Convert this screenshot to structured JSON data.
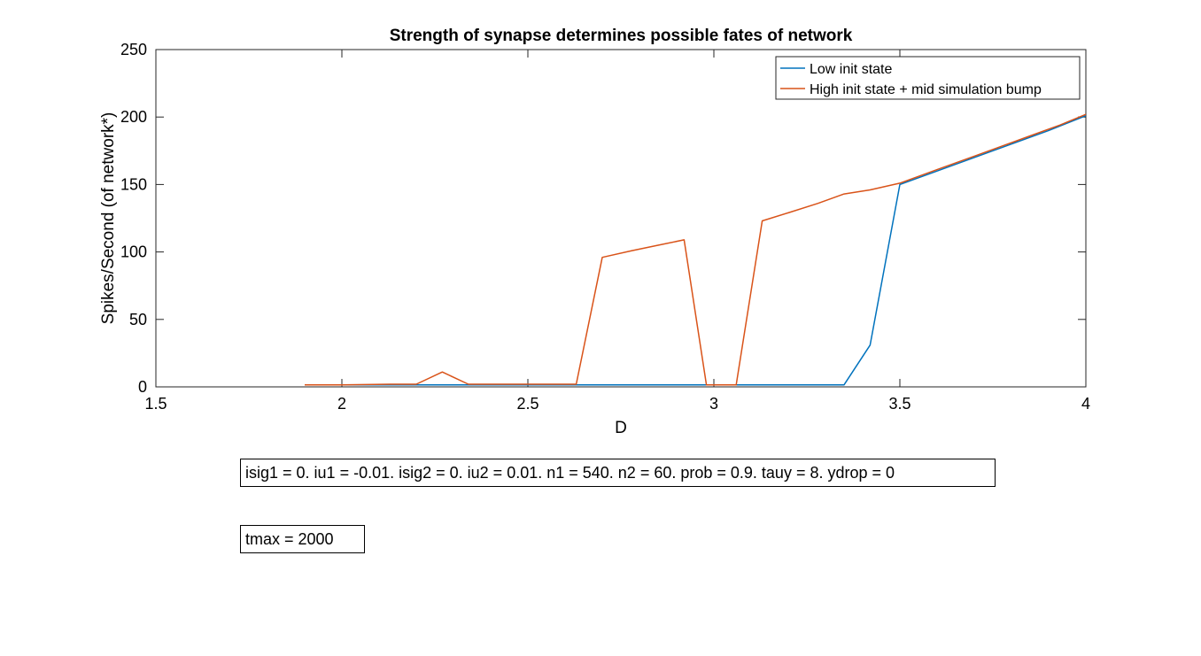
{
  "chart_data": {
    "type": "line",
    "title": "Strength of synapse determines possible fates of network",
    "xlabel": "D",
    "ylabel": "Spikes/Second (of network*)",
    "xlim": [
      1.5,
      4
    ],
    "ylim": [
      0,
      250
    ],
    "xticks": [
      1.5,
      2,
      2.5,
      3,
      3.5,
      4
    ],
    "xtick_labels": [
      "1.5",
      "2",
      "2.5",
      "3",
      "3.5",
      "4"
    ],
    "yticks": [
      0,
      50,
      100,
      150,
      200,
      250
    ],
    "ytick_labels": [
      "0",
      "50",
      "100",
      "150",
      "200",
      "250"
    ],
    "grid": false,
    "legend_position": "top-right",
    "series": [
      {
        "name": "Low init state",
        "color": "#0072BD",
        "x": [
          1.9,
          2.0,
          2.1,
          2.2,
          2.3,
          2.4,
          2.5,
          2.6,
          2.7,
          2.8,
          2.9,
          3.0,
          3.1,
          3.2,
          3.3,
          3.35,
          3.42,
          3.5,
          3.6,
          3.7,
          3.8,
          3.9,
          4.0
        ],
        "y": [
          1.5,
          1.5,
          1.5,
          1.5,
          1.5,
          1.5,
          1.5,
          1.5,
          1.5,
          1.5,
          1.5,
          1.5,
          1.5,
          1.5,
          1.5,
          1.5,
          31,
          150,
          160,
          170,
          180,
          190,
          201
        ]
      },
      {
        "name": "High init state + mid simulation bump",
        "color": "#D95319",
        "x": [
          1.9,
          2.0,
          2.13,
          2.2,
          2.27,
          2.34,
          2.45,
          2.55,
          2.63,
          2.7,
          2.78,
          2.85,
          2.92,
          2.98,
          3.06,
          3.13,
          3.2,
          3.28,
          3.35,
          3.42,
          3.5,
          3.6,
          3.7,
          3.78,
          3.85,
          3.93,
          4.0
        ],
        "y": [
          1.5,
          1.5,
          2,
          2,
          11,
          2,
          2,
          2,
          2,
          96,
          101,
          105,
          109,
          1.5,
          1.5,
          123,
          129,
          136,
          143,
          146,
          151,
          161,
          171,
          179,
          186,
          194,
          202
        ]
      }
    ]
  },
  "annotations": [
    "isig1 = 0. iu1 = -0.01. isig2 = 0. iu2 = 0.01. n1 = 540. n2 = 60. prob = 0.9. tauy = 8. ydrop = 0",
    "tmax = 2000"
  ]
}
